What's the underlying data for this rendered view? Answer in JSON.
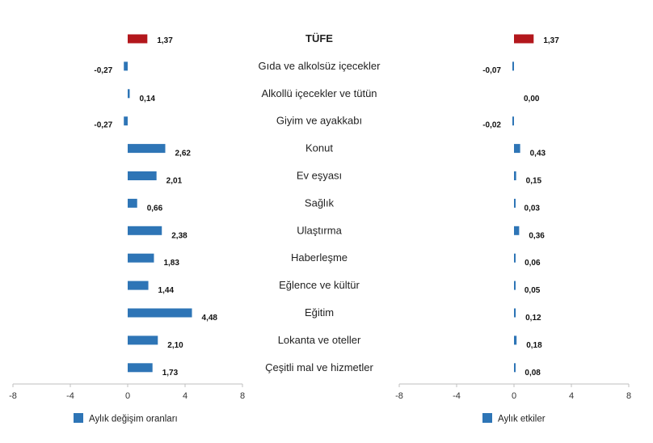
{
  "chart_data": {
    "type": "bar",
    "orientation": "horizontal",
    "categories": [
      "TÜFE",
      "Gıda ve alkolsüz içecekler",
      "Alkollü içecekler ve tütün",
      "Giyim ve ayakkabı",
      "Konut",
      "Ev eşyası",
      "Sağlık",
      "Ulaştırma",
      "Haberleşme",
      "Eğlence ve kültür",
      "Eğitim",
      "Lokanta ve oteller",
      "Çeşitli mal ve hizmetler"
    ],
    "panels": [
      {
        "legend": "Aylık değişim oranları",
        "values": [
          1.37,
          -0.27,
          0.14,
          -0.27,
          2.62,
          2.01,
          0.66,
          2.38,
          1.83,
          1.44,
          4.48,
          2.1,
          1.73
        ],
        "labels": [
          "1,37",
          "-0,27",
          "0,14",
          "-0,27",
          "2,62",
          "2,01",
          "0,66",
          "2,38",
          "1,83",
          "1,44",
          "4,48",
          "2,10",
          "1,73"
        ],
        "xlim": [
          -8,
          8
        ],
        "ticks": [
          "-8",
          "-4",
          "0",
          "4",
          "8"
        ]
      },
      {
        "legend": "Aylık etkiler",
        "values": [
          1.37,
          -0.07,
          0.0,
          -0.02,
          0.43,
          0.15,
          0.03,
          0.36,
          0.06,
          0.05,
          0.12,
          0.18,
          0.08
        ],
        "labels": [
          "1,37",
          "-0,07",
          "0,00",
          "-0,02",
          "0,43",
          "0,15",
          "0,03",
          "0,36",
          "0,06",
          "0,05",
          "0,12",
          "0,18",
          "0,08"
        ],
        "xlim": [
          -8,
          8
        ],
        "ticks": [
          "-8",
          "-4",
          "0",
          "4",
          "8"
        ]
      }
    ],
    "highlight_index": 0,
    "colors": {
      "bar": "#2e75b6",
      "highlight": "#b3171c",
      "axis": "#bfbfbf"
    },
    "grid": false
  }
}
